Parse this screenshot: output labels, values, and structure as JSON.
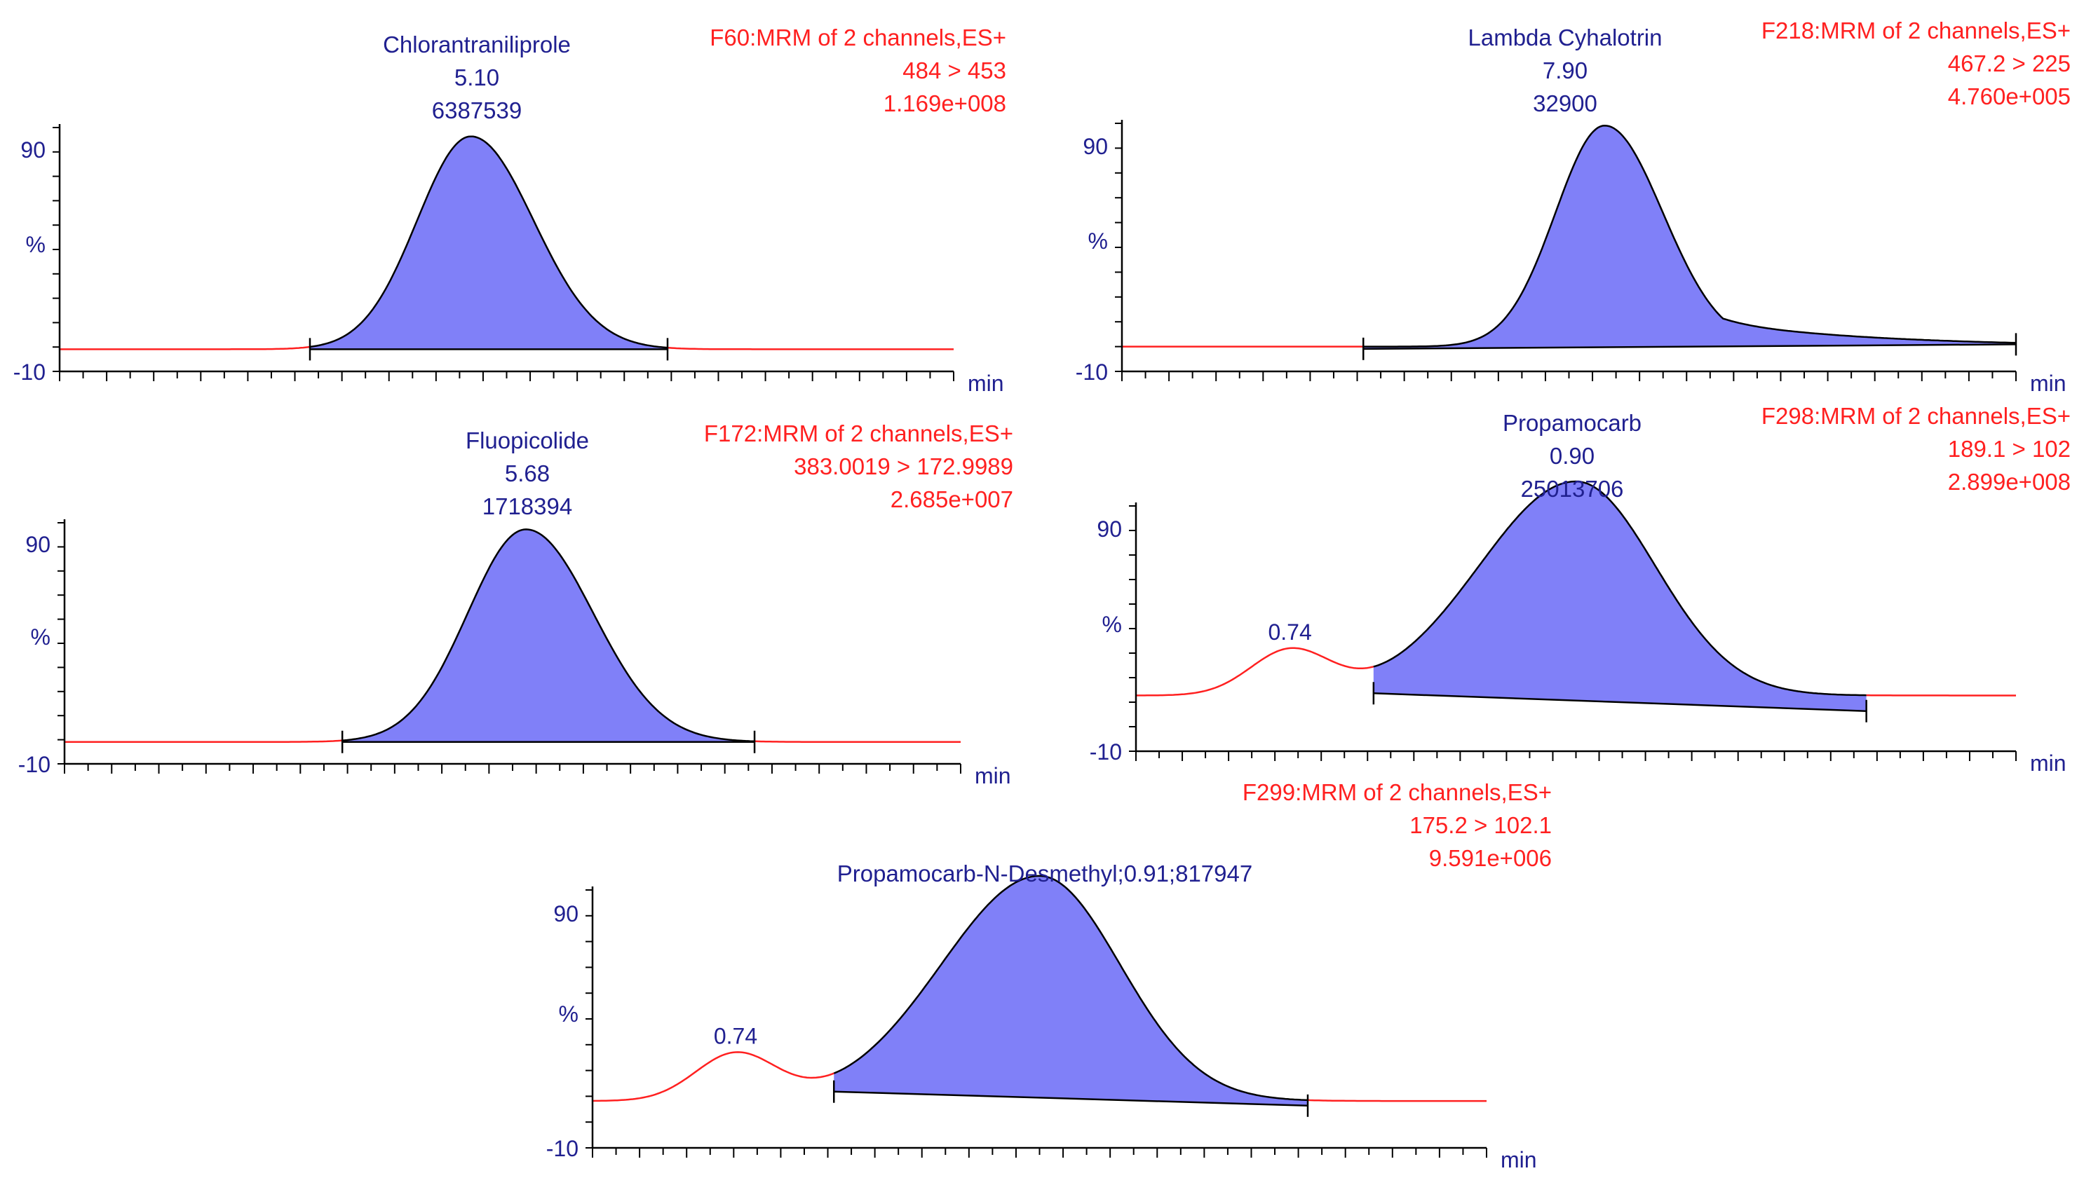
{
  "colors": {
    "trace": "#ff2020",
    "fill": "#8080f8",
    "outline": "#000000",
    "axis": "#000000",
    "label": "#202090",
    "header": "#ff2020"
  },
  "chart_data": [
    {
      "type": "area",
      "compound": "Chlorantraniliprole",
      "rt_label": "5.10",
      "area_label": "6387539",
      "header_lines": [
        "F60:MRM of 2 channels,ES+",
        "484 > 453",
        "1.169e+008"
      ],
      "y_ticks": [
        "90",
        "%",
        "-10"
      ],
      "x_unit": "min",
      "ylim": [
        -10,
        100
      ],
      "xlim": [
        0,
        100
      ],
      "peak": {
        "rt": 46.0,
        "height": 96,
        "width_left": 6.0,
        "width_right": 7.0
      },
      "minor_peaks": [],
      "baseline_offset": 0,
      "integration": {
        "start": 28,
        "end": 68,
        "start_level": 0,
        "end_level": 0
      },
      "secondary_label": null
    },
    {
      "type": "area",
      "compound": "Lambda Cyhalotrin",
      "rt_label": "7.90",
      "area_label": "32900",
      "header_lines": [
        "F218:MRM of 2 channels,ES+",
        "467.2 > 225",
        "4.760e+005"
      ],
      "y_ticks": [
        "90",
        "%",
        "-10"
      ],
      "x_unit": "min",
      "ylim": [
        -10,
        100
      ],
      "xlim": [
        0,
        100
      ],
      "peak": {
        "rt": 54.0,
        "height": 98,
        "width_left": 5.5,
        "width_right": 6.5,
        "tail": 0.22
      },
      "minor_peaks": [],
      "baseline_offset": 1,
      "integration": {
        "start": 27,
        "end": 100,
        "start_level": 0,
        "end_level": 2
      },
      "secondary_label": null
    },
    {
      "type": "area",
      "compound": "Fluopicolide",
      "rt_label": "5.68",
      "area_label": "1718394",
      "header_lines": [
        "F172:MRM of 2 channels,ES+",
        "383.0019 > 172.9989",
        "2.685e+007"
      ],
      "y_ticks": [
        "90",
        "%",
        "-10"
      ],
      "x_unit": "min",
      "ylim": [
        -10,
        100
      ],
      "xlim": [
        0,
        100
      ],
      "peak": {
        "rt": 51.5,
        "height": 97,
        "width_left": 6.5,
        "width_right": 7.5
      },
      "minor_peaks": [],
      "baseline_offset": 0,
      "integration": {
        "start": 31,
        "end": 77,
        "start_level": 0,
        "end_level": 0
      },
      "secondary_label": null
    },
    {
      "type": "area",
      "compound": "Propamocarb",
      "rt_label": "0.90",
      "area_label": "25013706",
      "header_lines": [
        "F298:MRM of 2 channels,ES+",
        "189.1 > 102",
        "2.899e+008"
      ],
      "y_ticks": [
        "90",
        "%",
        "-10"
      ],
      "x_unit": "min",
      "ylim": [
        -10,
        100
      ],
      "xlim": [
        0,
        100
      ],
      "peak": {
        "rt": 50.0,
        "height": 96,
        "width_left": 11.0,
        "width_right": 9.0
      },
      "minor_peaks": [
        {
          "rt": 17.5,
          "height": 20,
          "width": 4.5
        }
      ],
      "baseline_offset": 15,
      "integration": {
        "start": 27,
        "end": 83,
        "start_level": 16,
        "end_level": 8
      },
      "secondary_label": "0.74"
    },
    {
      "type": "area",
      "compound": "Propamocarb-N-Desmethyl;0.91;817947",
      "rt_label": "",
      "area_label": "",
      "header_lines": [
        "F299:MRM of 2 channels,ES+",
        "175.2 > 102.1",
        "9.591e+006"
      ],
      "y_ticks": [
        "90",
        "%",
        "-10"
      ],
      "x_unit": "min",
      "ylim": [
        -10,
        100
      ],
      "xlim": [
        0,
        100
      ],
      "peak": {
        "rt": 50.0,
        "height": 96,
        "width_left": 11.0,
        "width_right": 9.0
      },
      "minor_peaks": [
        {
          "rt": 16.0,
          "height": 20,
          "width": 4.5
        }
      ],
      "baseline_offset": 10,
      "integration": {
        "start": 27,
        "end": 80,
        "start_level": 14,
        "end_level": 8
      },
      "secondary_label": "0.74"
    }
  ]
}
